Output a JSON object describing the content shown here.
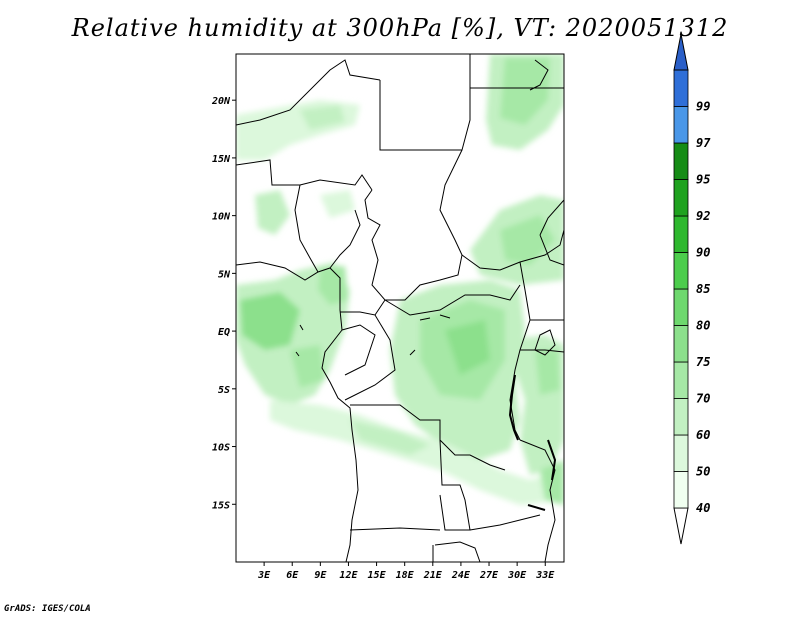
{
  "title": "Relative humidity at 300hPa [%], VT: 2020051312",
  "credit": "GrADS: IGES/COLA",
  "map": {
    "variable": "Relative humidity",
    "level": "300hPa",
    "units": "%",
    "valid_time": "2020051312",
    "lon_range": [
      0,
      35
    ],
    "lat_range": [
      -20,
      24
    ],
    "lat_labels": [
      {
        "lat": 20,
        "text": "20N"
      },
      {
        "lat": 15,
        "text": "15N"
      },
      {
        "lat": 10,
        "text": "10N"
      },
      {
        "lat": 5,
        "text": "5N"
      },
      {
        "lat": 0,
        "text": "EQ"
      },
      {
        "lat": -5,
        "text": "5S"
      },
      {
        "lat": -10,
        "text": "10S"
      },
      {
        "lat": -15,
        "text": "15S"
      }
    ],
    "lon_labels": [
      {
        "lon": 3,
        "text": "3E"
      },
      {
        "lon": 6,
        "text": "6E"
      },
      {
        "lon": 9,
        "text": "9E"
      },
      {
        "lon": 12,
        "text": "12E"
      },
      {
        "lon": 15,
        "text": "15E"
      },
      {
        "lon": 18,
        "text": "18E"
      },
      {
        "lon": 21,
        "text": "21E"
      },
      {
        "lon": 24,
        "text": "24E"
      },
      {
        "lon": 27,
        "text": "27E"
      },
      {
        "lon": 30,
        "text": "30E"
      },
      {
        "lon": 33,
        "text": "33E"
      }
    ]
  },
  "colorbar": {
    "levels": [
      {
        "label": "40",
        "color": "#f0fff0"
      },
      {
        "label": "50",
        "color": "#dcf8dc"
      },
      {
        "label": "60",
        "color": "#c2f0c2"
      },
      {
        "label": "70",
        "color": "#a6e8a6"
      },
      {
        "label": "75",
        "color": "#8ce08c"
      },
      {
        "label": "80",
        "color": "#6ed86e"
      },
      {
        "label": "85",
        "color": "#4ccd4c"
      },
      {
        "label": "90",
        "color": "#2eb82e"
      },
      {
        "label": "92",
        "color": "#1fa21f"
      },
      {
        "label": "95",
        "color": "#168c16"
      },
      {
        "label": "97",
        "color": "#4a97e8"
      },
      {
        "label": "99",
        "color": "#2f6fd8"
      }
    ],
    "below_color": "#ffffff",
    "above_color": "#2a5fc8"
  }
}
